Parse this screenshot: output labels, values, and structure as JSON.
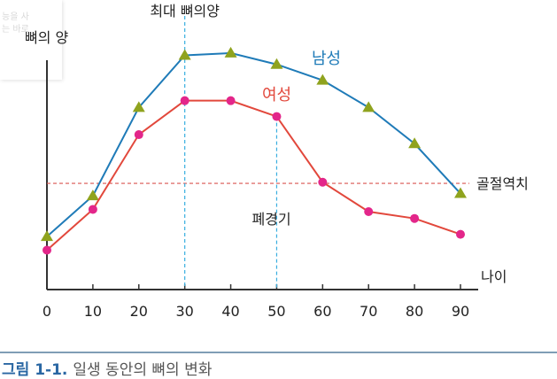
{
  "overlay_text": [
    "능을 사",
    "는 바로"
  ],
  "caption": {
    "number": "그림 1-1.",
    "text": "일생 동안의 뼈의 변화"
  },
  "colors": {
    "male_line": "#1f7bb8",
    "male_marker": "#8fa31e",
    "female_line": "#e2483c",
    "female_marker": "#e3268a",
    "threshold": "#d9534f",
    "guide": "#38aee0",
    "caption": "#2a67a3"
  },
  "chart_data": {
    "type": "line",
    "ylabel": "뼈의 양",
    "xlabel": "나이",
    "x": [
      0,
      10,
      20,
      30,
      40,
      50,
      60,
      70,
      80,
      90
    ],
    "x_ticks": [
      "0",
      "10",
      "20",
      "30",
      "40",
      "50",
      "60",
      "70",
      "80",
      "90"
    ],
    "xlim": [
      0,
      90
    ],
    "ylim": [
      0,
      120
    ],
    "grid": false,
    "series": [
      {
        "name": "남성",
        "marker": "triangle",
        "values": [
          23,
          41,
          80,
          103,
          104,
          99,
          92,
          80,
          64,
          42
        ]
      },
      {
        "name": "여성",
        "marker": "circle",
        "values": [
          17,
          35,
          68,
          83,
          83,
          76,
          47,
          34,
          31,
          24
        ]
      }
    ],
    "annotations": [
      {
        "type": "hline",
        "label": "골절역치",
        "y": 46.5
      },
      {
        "type": "vline",
        "label": "최대 뼈의양",
        "x": 30
      },
      {
        "type": "vline",
        "label": "폐경기",
        "x": 50
      }
    ]
  }
}
